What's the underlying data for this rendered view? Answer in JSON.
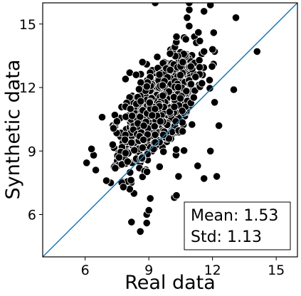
{
  "chart_data": {
    "type": "scatter",
    "xlabel": "Real data",
    "ylabel": "Synthetic data",
    "xlim": [
      4,
      16
    ],
    "ylim": [
      4,
      16
    ],
    "xticks": [
      6,
      9,
      12,
      15
    ],
    "yticks": [
      6,
      9,
      12,
      15
    ],
    "grid": false,
    "reference_line": "y = x",
    "colors": {
      "points": "#000000",
      "point_edge": "#ffffff",
      "line": "#1f77b4"
    },
    "annotation": {
      "lines": [
        "Mean: 1.53",
        "Std: 1.13"
      ],
      "placement": "bottom-right"
    },
    "cloud": {
      "count": 900,
      "x_mean": 9.5,
      "x_std": 0.85,
      "y_mean": 11.0,
      "y_std": 1.25,
      "correlation": 0.6
    },
    "points": [
      [
        8.6,
        5.2
      ],
      [
        8.9,
        5.6
      ],
      [
        8.9,
        6.0
      ],
      [
        9.0,
        6.2
      ],
      [
        10.2,
        6.8
      ],
      [
        10.3,
        6.9
      ],
      [
        10.4,
        7.8
      ],
      [
        8.3,
        7.0
      ],
      [
        8.1,
        7.2
      ],
      [
        7.8,
        7.3
      ],
      [
        7.2,
        7.5
      ],
      [
        7.0,
        7.6
      ],
      [
        6.5,
        8.1
      ],
      [
        6.4,
        8.8
      ],
      [
        6.3,
        9.1
      ],
      [
        7.3,
        9.3
      ],
      [
        6.8,
        10.6
      ],
      [
        7.4,
        10.7
      ],
      [
        7.5,
        10.4
      ],
      [
        12.2,
        7.8
      ],
      [
        11.6,
        7.7
      ],
      [
        11.3,
        8.3
      ],
      [
        11.9,
        9.0
      ],
      [
        12.3,
        10.2
      ],
      [
        12.1,
        11.3
      ],
      [
        13.0,
        11.9
      ],
      [
        14.1,
        13.7
      ],
      [
        13.1,
        15.3
      ],
      [
        12.1,
        13.7
      ],
      [
        12.0,
        13.8
      ],
      [
        11.6,
        13.7
      ],
      [
        11.4,
        14.2
      ],
      [
        10.5,
        13.0
      ],
      [
        10.6,
        13.2
      ],
      [
        10.0,
        13.6
      ],
      [
        10.3,
        14.4
      ],
      [
        10.9,
        14.9
      ],
      [
        10.8,
        15.3
      ],
      [
        10.9,
        16.0
      ],
      [
        11.9,
        15.9
      ],
      [
        11.6,
        15.6
      ],
      [
        9.3,
        16.0
      ],
      [
        8.9,
        13.1
      ],
      [
        8.7,
        13.2
      ],
      [
        8.1,
        12.7
      ],
      [
        8.4,
        12.6
      ],
      [
        7.9,
        12.4
      ],
      [
        11.2,
        12.5
      ],
      [
        11.5,
        12.2
      ],
      [
        7.6,
        8.7
      ],
      [
        7.9,
        8.9
      ],
      [
        8.0,
        8.5
      ]
    ]
  }
}
